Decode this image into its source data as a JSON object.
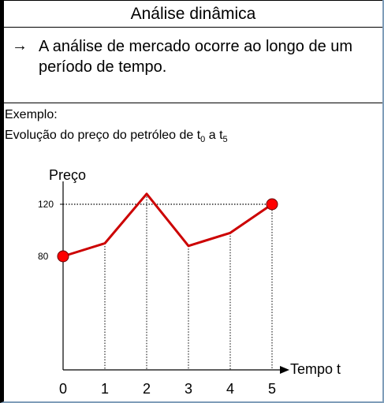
{
  "slide": {
    "title": "Análise dinâmica",
    "bullet_symbol": "→",
    "bullet_text": "A análise de mercado ocorre ao longo de um período de tempo.",
    "example_label": "Exemplo:",
    "example_desc_prefix": "Evolução do preço do petróleo de t",
    "example_desc_sub0": "0",
    "example_desc_mid": " a t",
    "example_desc_sub5": "5"
  },
  "chart_data": {
    "type": "line",
    "ylabel": "Preço",
    "xlabel": "Tempo t",
    "x": [
      0,
      1,
      2,
      3,
      4,
      5
    ],
    "y": [
      80,
      90,
      128,
      88,
      98,
      120
    ],
    "y_ticks": [
      80,
      120
    ],
    "highlighted_points": [
      0,
      5
    ],
    "line_color": "#cc0000",
    "marker_color": "#ff0000"
  }
}
